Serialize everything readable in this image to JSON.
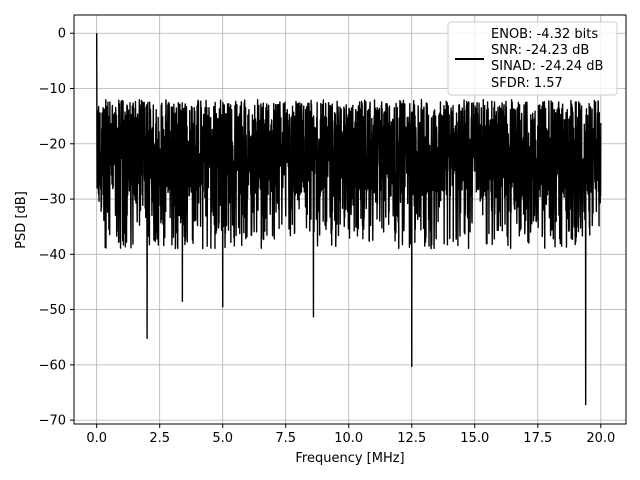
{
  "chart_data": {
    "type": "line",
    "title": "",
    "xlabel": "Frequency [MHz]",
    "ylabel": "PSD [dB]",
    "xlim": [
      -0.9,
      21.0
    ],
    "ylim": [
      -70.7,
      3.3
    ],
    "xticks": [
      0.0,
      2.5,
      5.0,
      7.5,
      10.0,
      12.5,
      15.0,
      17.5,
      20.0
    ],
    "xtick_labels": [
      "0.0",
      "2.5",
      "5.0",
      "7.5",
      "10.0",
      "12.5",
      "15.0",
      "17.5",
      "20.0"
    ],
    "yticks": [
      0,
      -10,
      -20,
      -30,
      -40,
      -50,
      -60,
      -70
    ],
    "ytick_labels": [
      "0",
      "−10",
      "−20",
      "−30",
      "−40",
      "−50",
      "−60",
      "−70"
    ],
    "grid": true,
    "legend_position": "top-right",
    "legend_entries": [
      "ENOB: -4.32 bits",
      "SNR: -24.23 dB",
      "SINAD: -24.24 dB",
      "SFDR: 1.57"
    ],
    "series": [
      {
        "color": "#000000",
        "x_range": [
          0.0,
          20.0
        ],
        "noise_floor_band_db": [
          -39,
          -12
        ],
        "peak": {
          "x": 0.0,
          "y": 0.0
        },
        "notable_dips": [
          {
            "x": 2.0,
            "y": -55.2
          },
          {
            "x": 3.4,
            "y": -48.5
          },
          {
            "x": 5.0,
            "y": -49.5
          },
          {
            "x": 8.6,
            "y": -51.3
          },
          {
            "x": 12.5,
            "y": -60.3
          },
          {
            "x": 19.4,
            "y": -67.2
          }
        ]
      }
    ]
  },
  "colors": {
    "line": "#000000",
    "grid": "#b0b0b0",
    "axes": "#000000",
    "background": "#ffffff"
  }
}
